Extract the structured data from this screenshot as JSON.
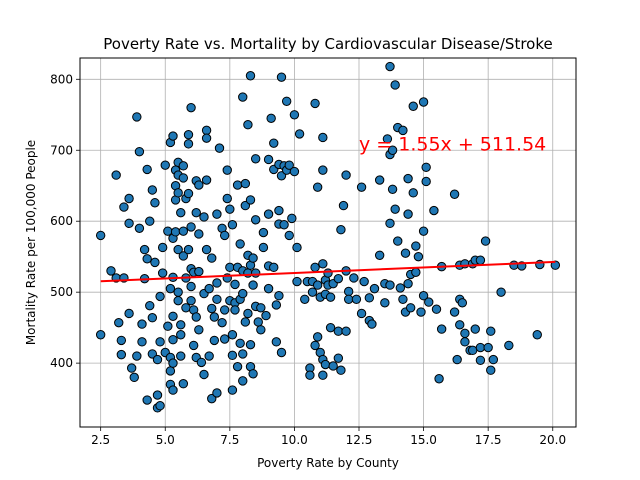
{
  "chart_data": {
    "type": "scatter",
    "title": "Poverty Rate vs. Mortality by Cardiovascular Disease/Stroke",
    "xlabel": "Poverty Rate by County",
    "ylabel": "Mortality Rate per 100,000 People",
    "xlim": [
      1.7,
      20.9
    ],
    "ylim": [
      310,
      830
    ],
    "xticks": [
      2.5,
      5.0,
      7.5,
      10.0,
      12.5,
      15.0,
      17.5,
      20.0
    ],
    "xtick_labels": [
      "2.5",
      "5.0",
      "7.5",
      "10.0",
      "12.5",
      "15.0",
      "17.5",
      "20.0"
    ],
    "yticks": [
      400,
      500,
      600,
      700,
      800
    ],
    "ytick_labels": [
      "400",
      "500",
      "600",
      "700",
      "800"
    ],
    "grid": true,
    "point_color": "#1f77b4",
    "point_edge_color": "#000000",
    "regression": {
      "slope": 1.55,
      "intercept": 511.54,
      "x_range": [
        2.5,
        20.1
      ],
      "color": "#ff0000",
      "equation_label": "y = 1.55x + 511.54",
      "label_x": 12.5,
      "label_y": 700
    },
    "points": [
      [
        2.5,
        580
      ],
      [
        2.5,
        440
      ],
      [
        2.9,
        530
      ],
      [
        3.1,
        665
      ],
      [
        3.1,
        520
      ],
      [
        3.2,
        457
      ],
      [
        3.3,
        412
      ],
      [
        3.3,
        432
      ],
      [
        3.4,
        520
      ],
      [
        3.4,
        620
      ],
      [
        3.6,
        632
      ],
      [
        3.6,
        597
      ],
      [
        3.6,
        470
      ],
      [
        3.7,
        393
      ],
      [
        3.8,
        380
      ],
      [
        3.9,
        747
      ],
      [
        3.9,
        410
      ],
      [
        4.0,
        698
      ],
      [
        4.0,
        590
      ],
      [
        4.1,
        455
      ],
      [
        4.1,
        430
      ],
      [
        4.2,
        560
      ],
      [
        4.2,
        519
      ],
      [
        4.3,
        673
      ],
      [
        4.3,
        547
      ],
      [
        4.3,
        348
      ],
      [
        4.4,
        600
      ],
      [
        4.4,
        481
      ],
      [
        4.5,
        644
      ],
      [
        4.5,
        464
      ],
      [
        4.5,
        413
      ],
      [
        4.6,
        626
      ],
      [
        4.6,
        542
      ],
      [
        4.7,
        405
      ],
      [
        4.7,
        355
      ],
      [
        4.7,
        337
      ],
      [
        4.8,
        494
      ],
      [
        4.8,
        430
      ],
      [
        4.8,
        340
      ],
      [
        4.9,
        563
      ],
      [
        4.9,
        527
      ],
      [
        5.0,
        679
      ],
      [
        5.0,
        415
      ],
      [
        5.1,
        586
      ],
      [
        5.1,
        452
      ],
      [
        5.2,
        711
      ],
      [
        5.2,
        505
      ],
      [
        5.2,
        408
      ],
      [
        5.2,
        389
      ],
      [
        5.2,
        370
      ],
      [
        5.3,
        720
      ],
      [
        5.3,
        576
      ],
      [
        5.3,
        521
      ],
      [
        5.3,
        466
      ],
      [
        5.3,
        433
      ],
      [
        5.3,
        400
      ],
      [
        5.3,
        362
      ],
      [
        5.4,
        672
      ],
      [
        5.4,
        650
      ],
      [
        5.4,
        630
      ],
      [
        5.4,
        585
      ],
      [
        5.5,
        683
      ],
      [
        5.5,
        665
      ],
      [
        5.5,
        640
      ],
      [
        5.5,
        560
      ],
      [
        5.5,
        500
      ],
      [
        5.5,
        488
      ],
      [
        5.6,
        612
      ],
      [
        5.6,
        454
      ],
      [
        5.6,
        440
      ],
      [
        5.6,
        410
      ],
      [
        5.7,
        678
      ],
      [
        5.7,
        661
      ],
      [
        5.7,
        586
      ],
      [
        5.7,
        551
      ],
      [
        5.7,
        371
      ],
      [
        5.8,
        632
      ],
      [
        5.8,
        520
      ],
      [
        5.8,
        478
      ],
      [
        5.9,
        722
      ],
      [
        5.9,
        709
      ],
      [
        5.9,
        639
      ],
      [
        5.9,
        560
      ],
      [
        6.0,
        760
      ],
      [
        6.0,
        592
      ],
      [
        6.0,
        533
      ],
      [
        6.0,
        508
      ],
      [
        6.0,
        488
      ],
      [
        6.1,
        528
      ],
      [
        6.1,
        475
      ],
      [
        6.1,
        425
      ],
      [
        6.2,
        657
      ],
      [
        6.2,
        612
      ],
      [
        6.2,
        465
      ],
      [
        6.2,
        408
      ],
      [
        6.3,
        651
      ],
      [
        6.3,
        582
      ],
      [
        6.3,
        529
      ],
      [
        6.3,
        447
      ],
      [
        6.4,
        401
      ],
      [
        6.5,
        606
      ],
      [
        6.5,
        498
      ],
      [
        6.5,
        384
      ],
      [
        6.6,
        728
      ],
      [
        6.6,
        717
      ],
      [
        6.6,
        658
      ],
      [
        6.6,
        560
      ],
      [
        6.7,
        505
      ],
      [
        6.7,
        410
      ],
      [
        6.8,
        548
      ],
      [
        6.8,
        477
      ],
      [
        6.8,
        350
      ],
      [
        6.9,
        465
      ],
      [
        6.9,
        432
      ],
      [
        7.0,
        610
      ],
      [
        7.0,
        513
      ],
      [
        7.0,
        490
      ],
      [
        7.0,
        358
      ],
      [
        7.1,
        703
      ],
      [
        7.2,
        590
      ],
      [
        7.2,
        457
      ],
      [
        7.3,
        580
      ],
      [
        7.3,
        475
      ],
      [
        7.3,
        434
      ],
      [
        7.4,
        672
      ],
      [
        7.4,
        632
      ],
      [
        7.4,
        520
      ],
      [
        7.5,
        617
      ],
      [
        7.5,
        535
      ],
      [
        7.5,
        488
      ],
      [
        7.6,
        595
      ],
      [
        7.6,
        440
      ],
      [
        7.6,
        411
      ],
      [
        7.6,
        362
      ],
      [
        7.7,
        511
      ],
      [
        7.7,
        485
      ],
      [
        7.7,
        475
      ],
      [
        7.8,
        651
      ],
      [
        7.8,
        535
      ],
      [
        7.8,
        395
      ],
      [
        7.9,
        568
      ],
      [
        7.9,
        490
      ],
      [
        7.9,
        428
      ],
      [
        8.0,
        775
      ],
      [
        8.0,
        530
      ],
      [
        8.0,
        498
      ],
      [
        8.0,
        413
      ],
      [
        8.0,
        375
      ],
      [
        8.1,
        653
      ],
      [
        8.1,
        622
      ],
      [
        8.1,
        458
      ],
      [
        8.2,
        736
      ],
      [
        8.2,
        552
      ],
      [
        8.2,
        527
      ],
      [
        8.2,
        470
      ],
      [
        8.3,
        805
      ],
      [
        8.3,
        630
      ],
      [
        8.3,
        538
      ],
      [
        8.3,
        426
      ],
      [
        8.3,
        395
      ],
      [
        8.4,
        548
      ],
      [
        8.4,
        510
      ],
      [
        8.4,
        385
      ],
      [
        8.5,
        688
      ],
      [
        8.5,
        602
      ],
      [
        8.5,
        527
      ],
      [
        8.5,
        480
      ],
      [
        8.6,
        458
      ],
      [
        8.7,
        478
      ],
      [
        8.7,
        447
      ],
      [
        8.8,
        584
      ],
      [
        8.8,
        563
      ],
      [
        8.9,
        467
      ],
      [
        9.0,
        610
      ],
      [
        9.0,
        537
      ],
      [
        9.0,
        505
      ],
      [
        9.0,
        687
      ],
      [
        9.1,
        745
      ],
      [
        9.2,
        710
      ],
      [
        9.2,
        673
      ],
      [
        9.2,
        535
      ],
      [
        9.3,
        482
      ],
      [
        9.3,
        430
      ],
      [
        9.4,
        680
      ],
      [
        9.4,
        615
      ],
      [
        9.4,
        596
      ],
      [
        9.4,
        495
      ],
      [
        9.5,
        803
      ],
      [
        9.5,
        664
      ],
      [
        9.5,
        415
      ],
      [
        9.6,
        678
      ],
      [
        9.6,
        595
      ],
      [
        9.7,
        769
      ],
      [
        9.7,
        672
      ],
      [
        9.8,
        679
      ],
      [
        9.8,
        580
      ],
      [
        9.9,
        604
      ],
      [
        10.0,
        750
      ],
      [
        10.0,
        670
      ],
      [
        10.1,
        563
      ],
      [
        10.1,
        515
      ],
      [
        10.2,
        723
      ],
      [
        10.4,
        490
      ],
      [
        10.5,
        515
      ],
      [
        10.6,
        393
      ],
      [
        10.6,
        383
      ],
      [
        10.7,
        515
      ],
      [
        10.7,
        500
      ],
      [
        10.8,
        766
      ],
      [
        10.8,
        535
      ],
      [
        10.8,
        425
      ],
      [
        10.9,
        648
      ],
      [
        10.9,
        510
      ],
      [
        10.9,
        437
      ],
      [
        11.0,
        493
      ],
      [
        11.0,
        415
      ],
      [
        11.1,
        718
      ],
      [
        11.1,
        672
      ],
      [
        11.1,
        540
      ],
      [
        11.1,
        405
      ],
      [
        11.1,
        383
      ],
      [
        11.2,
        517
      ],
      [
        11.2,
        497
      ],
      [
        11.2,
        398
      ],
      [
        11.3,
        527
      ],
      [
        11.3,
        510
      ],
      [
        11.4,
        493
      ],
      [
        11.4,
        450
      ],
      [
        11.5,
        512
      ],
      [
        11.5,
        396
      ],
      [
        11.7,
        519
      ],
      [
        11.7,
        445
      ],
      [
        11.7,
        407
      ],
      [
        11.8,
        588
      ],
      [
        11.8,
        390
      ],
      [
        11.9,
        622
      ],
      [
        12.0,
        665
      ],
      [
        12.0,
        530
      ],
      [
        12.0,
        445
      ],
      [
        12.1,
        501
      ],
      [
        12.1,
        490
      ],
      [
        12.3,
        520
      ],
      [
        12.4,
        490
      ],
      [
        12.6,
        470
      ],
      [
        12.6,
        648
      ],
      [
        12.7,
        515
      ],
      [
        12.9,
        492
      ],
      [
        12.9,
        460
      ],
      [
        13.0,
        455
      ],
      [
        13.1,
        505
      ],
      [
        13.3,
        658
      ],
      [
        13.3,
        552
      ],
      [
        13.5,
        512
      ],
      [
        13.5,
        485
      ],
      [
        13.6,
        716
      ],
      [
        13.7,
        818
      ],
      [
        13.7,
        694
      ],
      [
        13.7,
        597
      ],
      [
        13.7,
        510
      ],
      [
        13.8,
        700
      ],
      [
        13.8,
        645
      ],
      [
        13.9,
        792
      ],
      [
        13.9,
        617
      ],
      [
        14.0,
        732
      ],
      [
        14.0,
        572
      ],
      [
        14.1,
        506
      ],
      [
        14.2,
        728
      ],
      [
        14.2,
        490
      ],
      [
        14.3,
        555
      ],
      [
        14.3,
        472
      ],
      [
        14.4,
        660
      ],
      [
        14.4,
        610
      ],
      [
        14.4,
        512
      ],
      [
        14.5,
        525
      ],
      [
        14.5,
        478
      ],
      [
        14.6,
        762
      ],
      [
        14.6,
        640
      ],
      [
        14.7,
        565
      ],
      [
        14.7,
        528
      ],
      [
        14.8,
        550
      ],
      [
        14.9,
        472
      ],
      [
        15.0,
        768
      ],
      [
        15.0,
        495
      ],
      [
        15.0,
        586
      ],
      [
        15.1,
        676
      ],
      [
        15.1,
        656
      ],
      [
        15.2,
        486
      ],
      [
        15.4,
        615
      ],
      [
        15.5,
        476
      ],
      [
        15.6,
        378
      ],
      [
        15.7,
        448
      ],
      [
        15.7,
        536
      ],
      [
        16.2,
        638
      ],
      [
        16.2,
        472
      ],
      [
        16.3,
        405
      ],
      [
        16.4,
        538
      ],
      [
        16.4,
        490
      ],
      [
        16.4,
        454
      ],
      [
        16.5,
        485
      ],
      [
        16.6,
        442
      ],
      [
        16.6,
        430
      ],
      [
        16.6,
        540
      ],
      [
        16.8,
        418
      ],
      [
        16.9,
        418
      ],
      [
        16.9,
        540
      ],
      [
        17.0,
        545
      ],
      [
        17.0,
        448
      ],
      [
        17.2,
        545
      ],
      [
        17.2,
        422
      ],
      [
        17.2,
        404
      ],
      [
        17.4,
        572
      ],
      [
        17.5,
        422
      ],
      [
        17.6,
        445
      ],
      [
        17.6,
        390
      ],
      [
        17.7,
        405
      ],
      [
        18.0,
        500
      ],
      [
        18.3,
        425
      ],
      [
        18.5,
        538
      ],
      [
        18.8,
        537
      ],
      [
        19.4,
        440
      ],
      [
        19.5,
        539
      ],
      [
        20.1,
        538
      ]
    ]
  }
}
